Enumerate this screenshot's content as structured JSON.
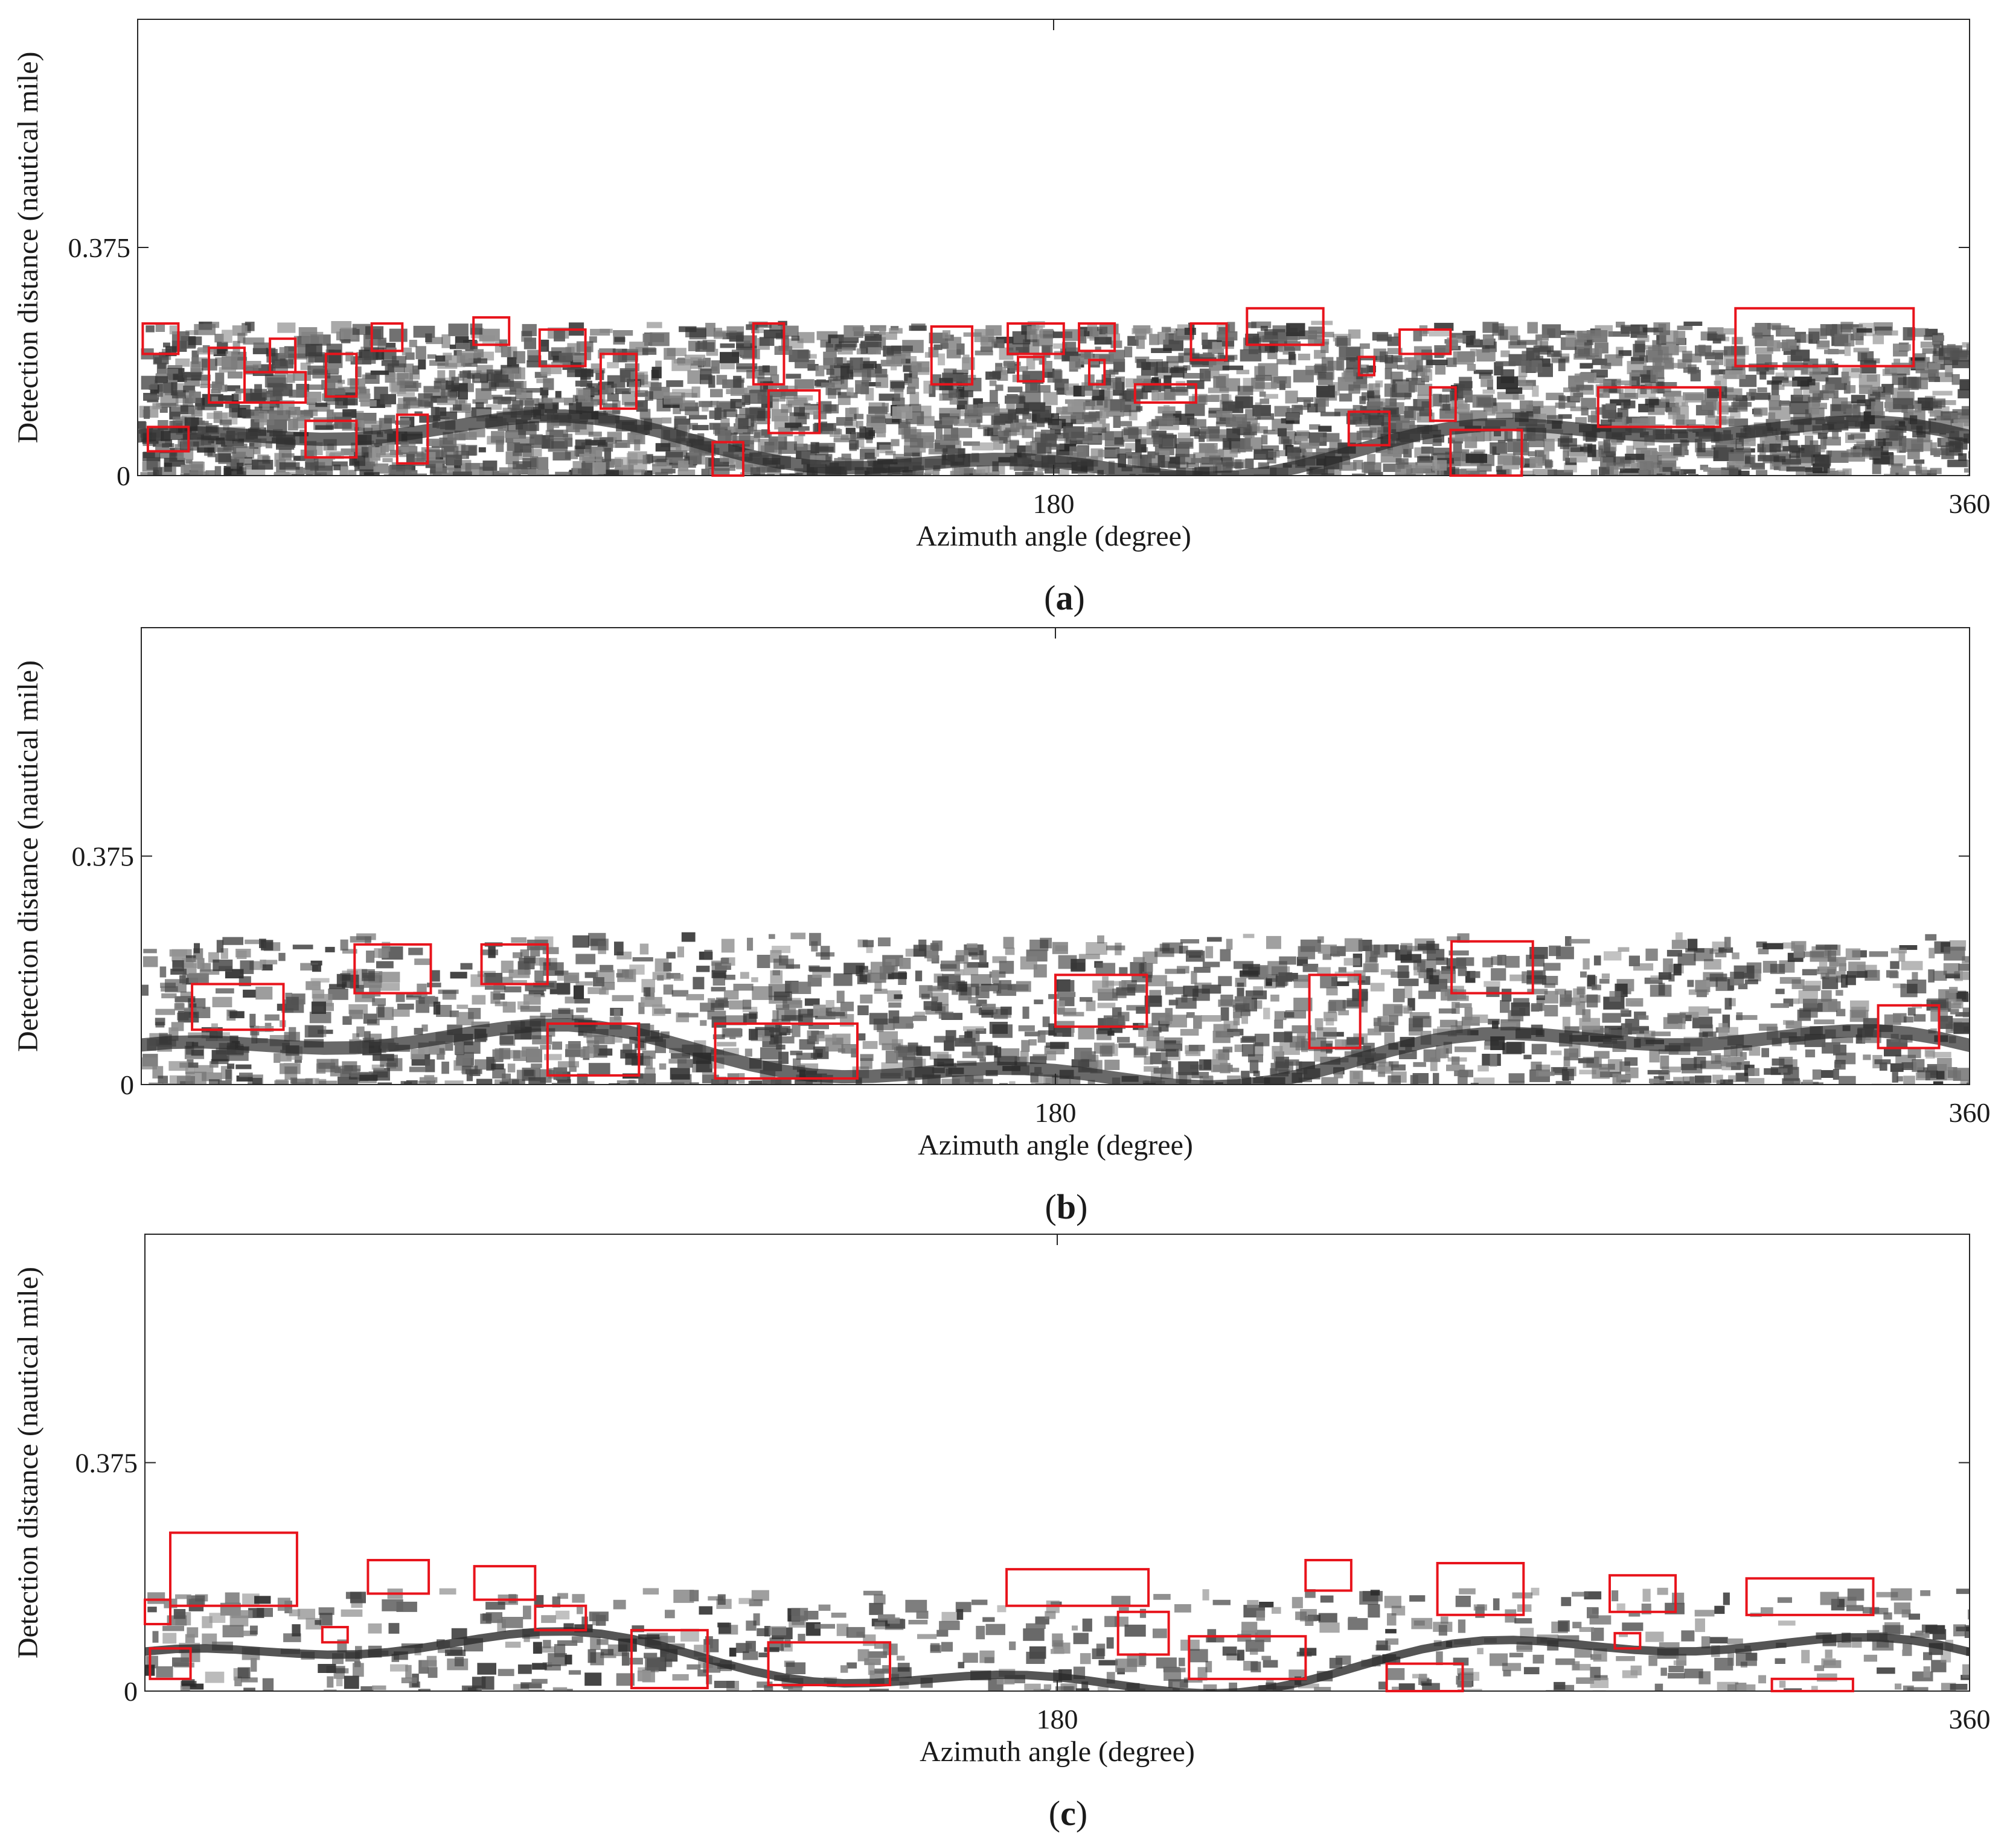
{
  "chart_data": [
    {
      "type": "heatmap",
      "panel_label": "(a)",
      "xlabel": "Azimuth angle (degree)",
      "ylabel": "Detection distance (nautical mile)",
      "xlim": [
        0,
        360
      ],
      "ylim": [
        0,
        0.75
      ],
      "x_ticks": [
        180,
        360
      ],
      "y_ticks": [
        0,
        0.375
      ],
      "colormap": "gray",
      "box_color": "#e8141c",
      "echo_band": [
        0,
        0.255
      ],
      "detection_boxes": [
        {
          "x": [
            1,
            8
          ],
          "y": [
            0.2,
            0.25
          ]
        },
        {
          "x": [
            14,
            21
          ],
          "y": [
            0.12,
            0.21
          ]
        },
        {
          "x": [
            21,
            33
          ],
          "y": [
            0.12,
            0.17
          ]
        },
        {
          "x": [
            26,
            31
          ],
          "y": [
            0.17,
            0.225
          ]
        },
        {
          "x": [
            37,
            43
          ],
          "y": [
            0.13,
            0.2
          ]
        },
        {
          "x": [
            46,
            52
          ],
          "y": [
            0.205,
            0.25
          ]
        },
        {
          "x": [
            2,
            10
          ],
          "y": [
            0.04,
            0.08
          ]
        },
        {
          "x": [
            33,
            43
          ],
          "y": [
            0.03,
            0.09
          ]
        },
        {
          "x": [
            51,
            57
          ],
          "y": [
            0.02,
            0.1
          ]
        },
        {
          "x": [
            66,
            73
          ],
          "y": [
            0.215,
            0.26
          ]
        },
        {
          "x": [
            79,
            88
          ],
          "y": [
            0.18,
            0.24
          ]
        },
        {
          "x": [
            91,
            98
          ],
          "y": [
            0.11,
            0.2
          ]
        },
        {
          "x": [
            113,
            119
          ],
          "y": [
            0.0,
            0.055
          ]
        },
        {
          "x": [
            121,
            127
          ],
          "y": [
            0.15,
            0.25
          ]
        },
        {
          "x": [
            124,
            134
          ],
          "y": [
            0.07,
            0.14
          ]
        },
        {
          "x": [
            156,
            164
          ],
          "y": [
            0.15,
            0.245
          ]
        },
        {
          "x": [
            171,
            182
          ],
          "y": [
            0.2,
            0.25
          ]
        },
        {
          "x": [
            173,
            178
          ],
          "y": [
            0.155,
            0.195
          ]
        },
        {
          "x": [
            185,
            192
          ],
          "y": [
            0.205,
            0.25
          ]
        },
        {
          "x": [
            187,
            190
          ],
          "y": [
            0.15,
            0.19
          ]
        },
        {
          "x": [
            196,
            208
          ],
          "y": [
            0.12,
            0.15
          ]
        },
        {
          "x": [
            207,
            214
          ],
          "y": [
            0.19,
            0.25
          ]
        },
        {
          "x": [
            218,
            233
          ],
          "y": [
            0.215,
            0.275
          ]
        },
        {
          "x": [
            240,
            243
          ],
          "y": [
            0.165,
            0.195
          ]
        },
        {
          "x": [
            238,
            246
          ],
          "y": [
            0.05,
            0.105
          ]
        },
        {
          "x": [
            248,
            258
          ],
          "y": [
            0.2,
            0.24
          ]
        },
        {
          "x": [
            254,
            259
          ],
          "y": [
            0.09,
            0.145
          ]
        },
        {
          "x": [
            258,
            272
          ],
          "y": [
            0.0,
            0.075
          ]
        },
        {
          "x": [
            287,
            311
          ],
          "y": [
            0.08,
            0.145
          ]
        },
        {
          "x": [
            314,
            349
          ],
          "y": [
            0.18,
            0.275
          ]
        }
      ]
    },
    {
      "type": "heatmap",
      "panel_label": "(b)",
      "xlabel": "Azimuth angle (degree)",
      "ylabel": "Detection distance (nautical mile)",
      "xlim": [
        0,
        360
      ],
      "ylim": [
        0,
        0.75
      ],
      "x_ticks": [
        180,
        360
      ],
      "y_ticks": [
        0,
        0.375
      ],
      "colormap": "gray",
      "box_color": "#e8141c",
      "echo_band": [
        0,
        0.25
      ],
      "detection_boxes": [
        {
          "x": [
            10,
            28
          ],
          "y": [
            0.09,
            0.165
          ]
        },
        {
          "x": [
            42,
            57
          ],
          "y": [
            0.15,
            0.23
          ]
        },
        {
          "x": [
            67,
            80
          ],
          "y": [
            0.165,
            0.23
          ]
        },
        {
          "x": [
            80,
            98
          ],
          "y": [
            0.015,
            0.1
          ]
        },
        {
          "x": [
            113,
            141
          ],
          "y": [
            0.01,
            0.1
          ]
        },
        {
          "x": [
            180,
            198
          ],
          "y": [
            0.095,
            0.18
          ]
        },
        {
          "x": [
            230,
            240
          ],
          "y": [
            0.06,
            0.18
          ]
        },
        {
          "x": [
            258,
            274
          ],
          "y": [
            0.15,
            0.235
          ]
        },
        {
          "x": [
            342,
            354
          ],
          "y": [
            0.06,
            0.13
          ]
        }
      ]
    },
    {
      "type": "heatmap",
      "panel_label": "(c)",
      "xlabel": "Azimuth angle (degree)",
      "ylabel": "Detection distance (nautical mile)",
      "xlim": [
        0,
        360
      ],
      "ylim": [
        0,
        0.75
      ],
      "x_ticks": [
        180,
        360
      ],
      "y_ticks": [
        0,
        0.375
      ],
      "colormap": "gray",
      "box_color": "#e8141c",
      "echo_band": [
        0,
        0.17
      ],
      "detection_boxes": [
        {
          "x": [
            0,
            5
          ],
          "y": [
            0.11,
            0.15
          ]
        },
        {
          "x": [
            1,
            9
          ],
          "y": [
            0.02,
            0.07
          ]
        },
        {
          "x": [
            5,
            30
          ],
          "y": [
            0.14,
            0.26
          ]
        },
        {
          "x": [
            35,
            40
          ],
          "y": [
            0.08,
            0.105
          ]
        },
        {
          "x": [
            44,
            56
          ],
          "y": [
            0.16,
            0.215
          ]
        },
        {
          "x": [
            65,
            77
          ],
          "y": [
            0.15,
            0.205
          ]
        },
        {
          "x": [
            77,
            87
          ],
          "y": [
            0.1,
            0.14
          ]
        },
        {
          "x": [
            96,
            111
          ],
          "y": [
            0.005,
            0.1
          ]
        },
        {
          "x": [
            123,
            147
          ],
          "y": [
            0.01,
            0.08
          ]
        },
        {
          "x": [
            170,
            198
          ],
          "y": [
            0.14,
            0.2
          ]
        },
        {
          "x": [
            192,
            202
          ],
          "y": [
            0.06,
            0.13
          ]
        },
        {
          "x": [
            206,
            229
          ],
          "y": [
            0.02,
            0.09
          ]
        },
        {
          "x": [
            229,
            238
          ],
          "y": [
            0.165,
            0.215
          ]
        },
        {
          "x": [
            245,
            260
          ],
          "y": [
            0.0,
            0.045
          ]
        },
        {
          "x": [
            255,
            272
          ],
          "y": [
            0.125,
            0.21
          ]
        },
        {
          "x": [
            289,
            302
          ],
          "y": [
            0.13,
            0.19
          ]
        },
        {
          "x": [
            290,
            295
          ],
          "y": [
            0.07,
            0.095
          ]
        },
        {
          "x": [
            316,
            341
          ],
          "y": [
            0.125,
            0.185
          ]
        },
        {
          "x": [
            321,
            337
          ],
          "y": [
            0.0,
            0.02
          ]
        }
      ]
    }
  ]
}
